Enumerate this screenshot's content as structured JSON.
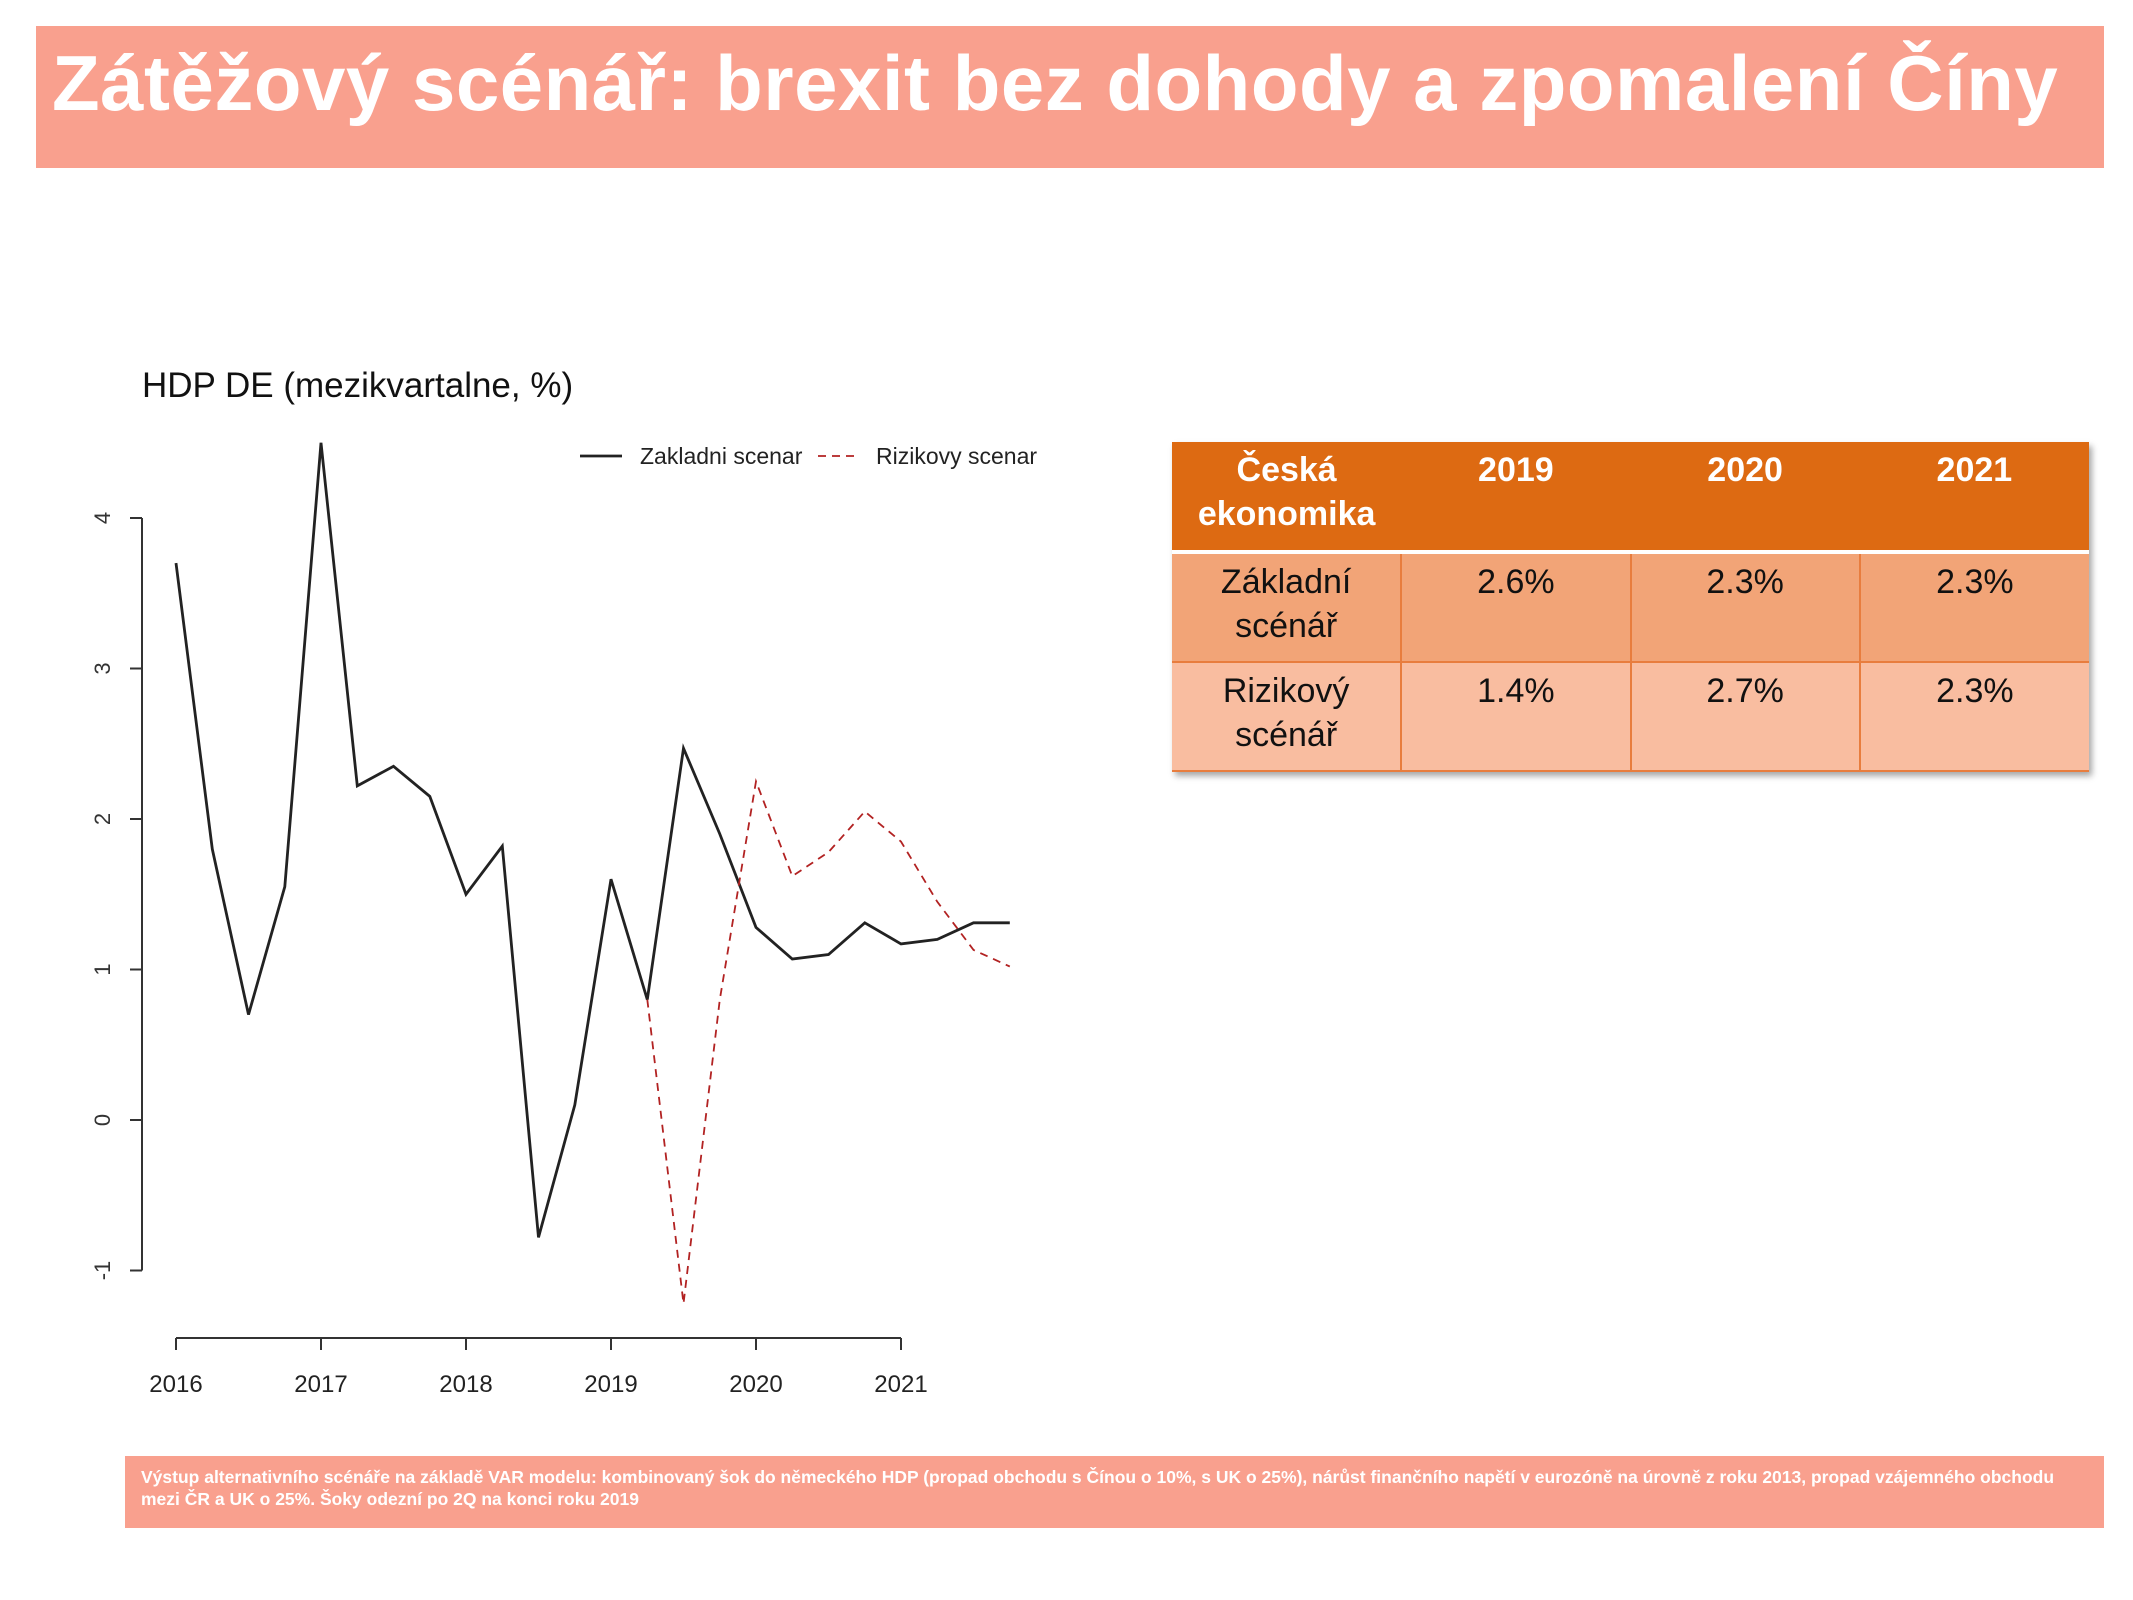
{
  "slide": {
    "title": "Zátěžový scénář: brexit bez dohody a zpomalení Číny",
    "footnote": "Výstup alternativního scénáře na základě VAR modelu: kombinovaný šok do německého HDP (propad obchodu s Čínou o 10%, s UK o 25%), nárůst finančního napětí v eurozóně na úrovně z roku 2013, propad vzájemného obchodu mezi ČR a UK o 25%. Šoky odezní po 2Q na konci roku 2019"
  },
  "colors": {
    "title_bar": "#F9A08E",
    "table_header": "#DD6A12",
    "table_row1": "#F2A477",
    "table_row2": "#F9BDA0",
    "baseline_line": "#222222",
    "risk_line": "#B22222"
  },
  "table": {
    "headers": [
      "Česká ekonomika",
      "2019",
      "2020",
      "2021"
    ],
    "rows": [
      {
        "label": "Základní scénář",
        "values": [
          "2.6%",
          "2.3%",
          "2.3%"
        ]
      },
      {
        "label": "Rizikový scénář",
        "values": [
          "1.4%",
          "2.7%",
          "2.3%"
        ]
      }
    ]
  },
  "chart_data": {
    "type": "line",
    "title": "HDP DE (mezikvartalne, %)",
    "xlabel": "",
    "ylabel": "",
    "xlim": [
      2016,
      2021.75
    ],
    "ylim": [
      -1,
      4.5
    ],
    "x_ticks": [
      2016,
      2017,
      2018,
      2019,
      2020,
      2021
    ],
    "x_tick_labels": [
      "2016",
      "2017",
      "2018",
      "2019",
      "2020",
      "2021"
    ],
    "y_ticks": [
      -1,
      0,
      1,
      2,
      3,
      4
    ],
    "y_tick_labels": [
      "-1",
      "0",
      "1",
      "2",
      "3",
      "4"
    ],
    "grid": false,
    "legend": "top-right",
    "series": [
      {
        "name": "Zakladni scenar",
        "style": "solid",
        "color": "#222222",
        "x": [
          2016,
          2016.25,
          2016.5,
          2016.75,
          2017,
          2017.25,
          2017.5,
          2017.75,
          2018,
          2018.25,
          2018.5,
          2018.75,
          2019,
          2019.25,
          2019.5,
          2019.75,
          2020,
          2020.25,
          2020.5,
          2020.75,
          2021,
          2021.25,
          2021.5,
          2021.75
        ],
        "values": [
          3.7,
          1.8,
          0.7,
          1.55,
          4.5,
          2.22,
          2.35,
          2.15,
          1.5,
          1.82,
          -0.78,
          0.1,
          1.6,
          0.8,
          2.47,
          1.9,
          1.28,
          1.07,
          1.1,
          1.31,
          1.17,
          1.2,
          1.31,
          1.31
        ]
      },
      {
        "name": "Rizikovy scenar",
        "style": "dashed",
        "color": "#B22222",
        "x": [
          2019.25,
          2019.5,
          2019.75,
          2020,
          2020.25,
          2020.5,
          2020.75,
          2021,
          2021.25,
          2021.5,
          2021.75
        ],
        "values": [
          0.8,
          -1.22,
          0.8,
          2.25,
          1.62,
          1.78,
          2.05,
          1.85,
          1.45,
          1.13,
          1.02
        ]
      }
    ]
  }
}
